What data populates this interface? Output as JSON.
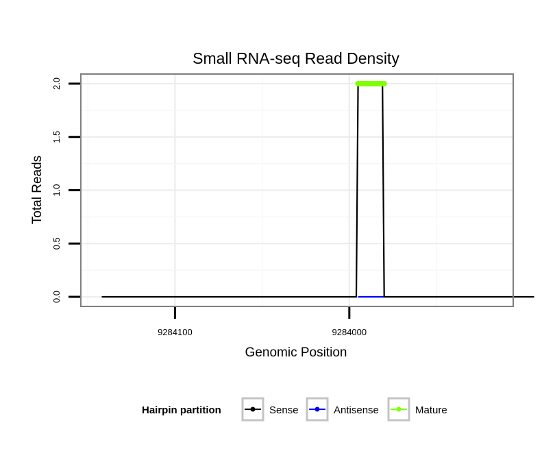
{
  "chart_data": {
    "type": "line",
    "title": "Small RNA-seq Read Density",
    "xlabel": "Genomic Position",
    "ylabel": "Total Reads",
    "x_reversed": true,
    "xlim": [
      9284154,
      9283906
    ],
    "ylim": [
      -0.09,
      2.09
    ],
    "x_ticks": [
      9284100,
      9284000
    ],
    "x_tick_labels": [
      "9284100",
      "9284000"
    ],
    "y_ticks": [
      0,
      0.5,
      1,
      1.5,
      2
    ],
    "y_tick_labels": [
      "0.0",
      "0.5",
      "1.0",
      "1.5",
      "2.0"
    ],
    "grid": true,
    "legend": {
      "title": "Hairpin partition",
      "position": "bottom",
      "entries": [
        {
          "name": "Sense",
          "color": "#000000"
        },
        {
          "name": "Antisense",
          "color": "#0000ff"
        },
        {
          "name": "Mature",
          "color": "#7fff00"
        }
      ]
    },
    "series": [
      {
        "name": "Sense",
        "color": "#000000",
        "x": [
          9284142,
          9283996,
          9283995,
          9283981,
          9283980,
          9283894
        ],
        "y": [
          0,
          0,
          2,
          2,
          0,
          0
        ]
      },
      {
        "name": "Antisense",
        "color": "#0000ff",
        "x": [
          9283995,
          9283980
        ],
        "y": [
          0,
          0
        ]
      },
      {
        "name": "Mature",
        "color": "#7fff00",
        "x": [
          9283995,
          9283980
        ],
        "y": [
          2,
          2
        ]
      }
    ]
  }
}
